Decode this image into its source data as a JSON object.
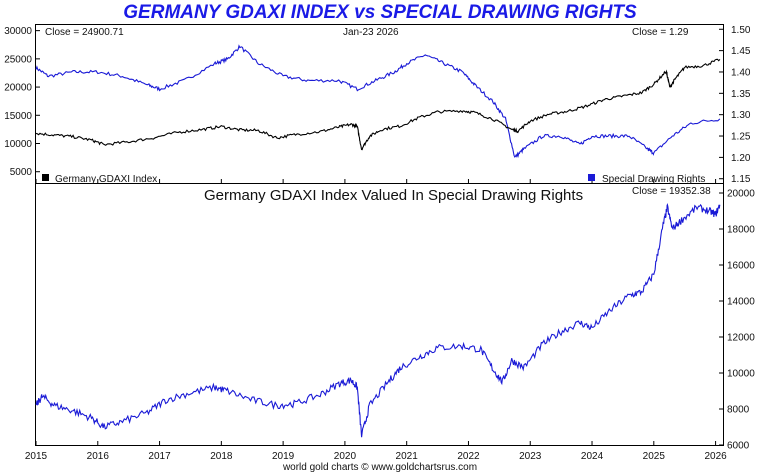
{
  "title": "GERMANY GDAXI INDEX vs SPECIAL DRAWING RIGHTS",
  "footer": "world gold charts © www.goldchartsrus.com",
  "top_panel": {
    "close_left": "Close = 24900.71",
    "date": "Jan-23  2026",
    "close_right": "Close = 1.29",
    "legend_left": "Germany GDAXI Index",
    "legend_right": "Special Drawing Rights"
  },
  "bottom_panel": {
    "subtitle": "Germany GDAXI Index Valued In Special Drawing Rights",
    "close": "Close = 19352.38"
  },
  "colors": {
    "gdaxi": "#000000",
    "sdr": "#1a1ad6",
    "ratio": "#1a1ad6",
    "title": "#1a1ae6"
  },
  "chart_data": [
    {
      "type": "line",
      "panel": "top",
      "x_ticks": [
        "2015",
        "2016",
        "2017",
        "2018",
        "2019",
        "2020",
        "2021",
        "2022",
        "2023",
        "2024",
        "2025",
        "2026"
      ],
      "y_left_ticks": [
        "30000",
        "25000",
        "20000",
        "15000",
        "10000",
        "5000"
      ],
      "y_left_lim": [
        3000,
        31000
      ],
      "y_right_ticks": [
        "1.50",
        "1.45",
        "1.40",
        "1.35",
        "1.30",
        "1.25",
        "1.20",
        "1.15"
      ],
      "y_right_lim": [
        1.14,
        1.51
      ],
      "series": [
        {
          "name": "Germany GDAXI Index",
          "axis": "left",
          "x": [
            2015.0,
            2015.3,
            2015.6,
            2015.9,
            2016.1,
            2016.5,
            2016.9,
            2017.3,
            2017.7,
            2018.0,
            2018.3,
            2018.6,
            2018.9,
            2019.2,
            2019.6,
            2019.9,
            2020.1,
            2020.2,
            2020.27,
            2020.4,
            2020.6,
            2020.9,
            2021.2,
            2021.5,
            2021.9,
            2022.1,
            2022.4,
            2022.7,
            2022.8,
            2023.0,
            2023.3,
            2023.6,
            2023.9,
            2024.2,
            2024.5,
            2024.8,
            2025.0,
            2025.2,
            2025.26,
            2025.35,
            2025.5,
            2025.8,
            2026.07
          ],
          "y": [
            11800,
            11500,
            11200,
            10600,
            9800,
            10300,
            11000,
            12000,
            12500,
            13000,
            12400,
            12300,
            11000,
            11600,
            12100,
            12900,
            13400,
            13000,
            9000,
            11300,
            12500,
            13100,
            14600,
            15600,
            15800,
            15500,
            14300,
            12500,
            12200,
            14000,
            15200,
            15700,
            16600,
            17800,
            18400,
            19000,
            20500,
            22800,
            20000,
            21500,
            23500,
            23800,
            24900
          ]
        },
        {
          "name": "Special Drawing Rights",
          "axis": "right",
          "x": [
            2015.0,
            2015.2,
            2015.6,
            2016.0,
            2016.4,
            2016.8,
            2017.0,
            2017.4,
            2017.9,
            2018.1,
            2018.3,
            2018.6,
            2019.0,
            2019.4,
            2019.9,
            2020.2,
            2020.5,
            2020.8,
            2021.0,
            2021.3,
            2021.6,
            2021.9,
            2022.1,
            2022.4,
            2022.6,
            2022.75,
            2022.9,
            2023.2,
            2023.5,
            2023.8,
            2024.0,
            2024.3,
            2024.6,
            2024.9,
            2025.0,
            2025.3,
            2025.6,
            2026.07
          ],
          "y": [
            1.41,
            1.39,
            1.4,
            1.4,
            1.39,
            1.37,
            1.36,
            1.38,
            1.42,
            1.43,
            1.46,
            1.42,
            1.39,
            1.38,
            1.38,
            1.36,
            1.38,
            1.4,
            1.42,
            1.44,
            1.42,
            1.4,
            1.37,
            1.33,
            1.29,
            1.2,
            1.22,
            1.25,
            1.25,
            1.23,
            1.25,
            1.25,
            1.25,
            1.22,
            1.21,
            1.25,
            1.28,
            1.29
          ]
        }
      ]
    },
    {
      "type": "line",
      "panel": "bottom",
      "title": "Germany GDAXI Index Valued In Special Drawing Rights",
      "x_ticks": [
        "2015",
        "2016",
        "2017",
        "2018",
        "2019",
        "2020",
        "2021",
        "2022",
        "2023",
        "2024",
        "2025",
        "2026"
      ],
      "y_ticks": [
        "20000",
        "18000",
        "16000",
        "14000",
        "12000",
        "10000",
        "8000",
        "6000"
      ],
      "ylim": [
        6000,
        20500
      ],
      "series": [
        {
          "name": "Germany GDAXI Index Valued In Special Drawing Rights",
          "x": [
            2015.0,
            2015.1,
            2015.3,
            2015.6,
            2015.9,
            2016.1,
            2016.4,
            2016.8,
            2017.1,
            2017.5,
            2017.9,
            2018.1,
            2018.5,
            2018.9,
            2019.2,
            2019.6,
            2019.9,
            2020.1,
            2020.2,
            2020.27,
            2020.4,
            2020.7,
            2020.9,
            2021.2,
            2021.5,
            2021.9,
            2022.2,
            2022.4,
            2022.55,
            2022.7,
            2022.9,
            2023.2,
            2023.5,
            2023.8,
            2024.0,
            2024.3,
            2024.6,
            2024.8,
            2025.0,
            2025.15,
            2025.22,
            2025.3,
            2025.45,
            2025.7,
            2025.9,
            2026.0,
            2026.07
          ],
          "y": [
            8200,
            8700,
            8200,
            7900,
            7500,
            7000,
            7300,
            7800,
            8500,
            8900,
            9200,
            9000,
            8500,
            8200,
            8300,
            8800,
            9400,
            9600,
            9200,
            6500,
            8200,
            9500,
            10300,
            10900,
            11400,
            11500,
            11300,
            10200,
            9500,
            10700,
            10300,
            11600,
            12300,
            12800,
            12500,
            13500,
            14300,
            14500,
            15500,
            18200,
            19200,
            18000,
            18500,
            19200,
            19000,
            18800,
            19352
          ]
        }
      ]
    }
  ]
}
